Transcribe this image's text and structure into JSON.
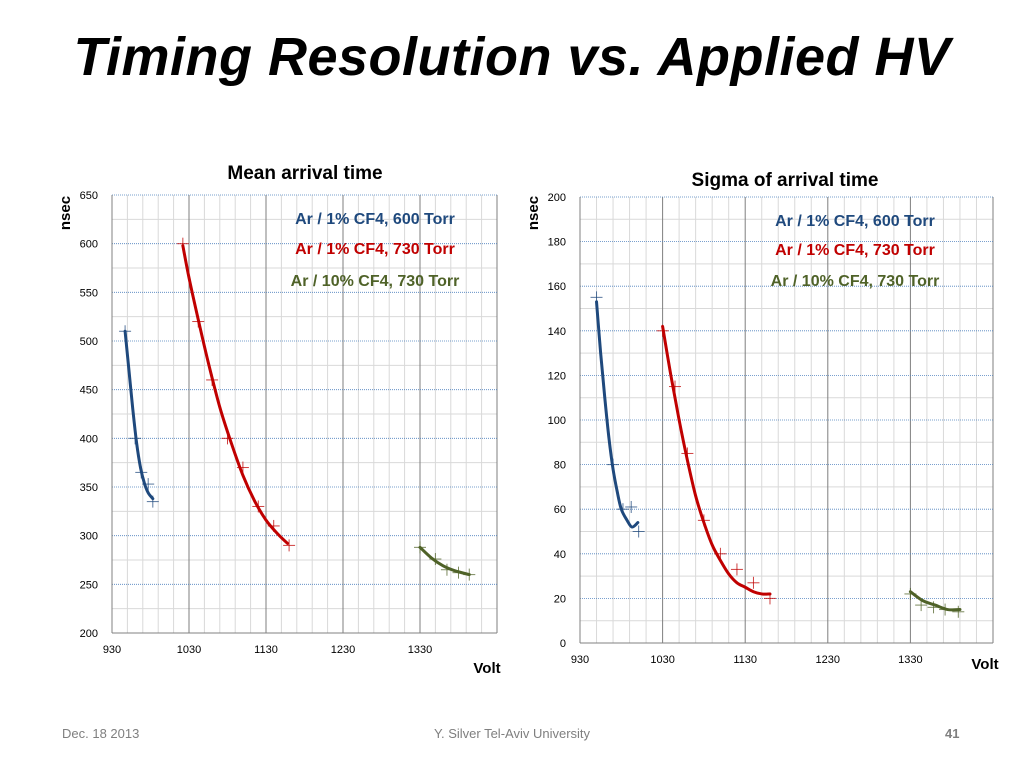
{
  "title": "Timing Resolution vs. Applied HV",
  "footer": {
    "date": "Dec. 18 2013",
    "center": "Y. Silver Tel-Aviv University",
    "page": "41"
  },
  "colors": {
    "series_600": "#1f497d",
    "series_730": "#c00000",
    "series_10pct": "#4f6228"
  },
  "chart_data": [
    {
      "type": "scatter",
      "title": "Mean arrival time",
      "xlabel": "Volt",
      "ylabel": "nsec",
      "xlim": [
        930,
        1430
      ],
      "ylim": [
        200,
        650
      ],
      "x_ticks": [
        930,
        1030,
        1130,
        1230,
        1330
      ],
      "y_ticks": [
        200,
        250,
        300,
        350,
        400,
        450,
        500,
        550,
        600,
        650
      ],
      "grid": true,
      "legend_position": "top-right",
      "series": [
        {
          "name": "Ar / 1% CF4, 600 Torr",
          "color": "#1f497d",
          "markers": [
            [
              947,
              510
            ],
            [
              960,
              400
            ],
            [
              968,
              365
            ],
            [
              977,
              353
            ],
            [
              983,
              335
            ]
          ],
          "fit": [
            [
              947,
              510
            ],
            [
              952,
              470
            ],
            [
              957,
              430
            ],
            [
              962,
              395
            ],
            [
              967,
              370
            ],
            [
              972,
              354
            ],
            [
              977,
              344
            ],
            [
              983,
              338
            ]
          ]
        },
        {
          "name": "Ar / 1% CF4, 730 Torr",
          "color": "#c00000",
          "markers": [
            [
              1022,
              600
            ],
            [
              1042,
              520
            ],
            [
              1060,
              460
            ],
            [
              1080,
              400
            ],
            [
              1100,
              370
            ],
            [
              1120,
              330
            ],
            [
              1140,
              310
            ],
            [
              1160,
              290
            ]
          ],
          "fit": [
            [
              1022,
              598
            ],
            [
              1030,
              565
            ],
            [
              1042,
              522
            ],
            [
              1055,
              478
            ],
            [
              1070,
              432
            ],
            [
              1085,
              395
            ],
            [
              1100,
              362
            ],
            [
              1115,
              336
            ],
            [
              1130,
              316
            ],
            [
              1145,
              302
            ],
            [
              1158,
              292
            ]
          ]
        },
        {
          "name": "Ar / 10% CF4, 730 Torr",
          "color": "#4f6228",
          "markers": [
            [
              1330,
              288
            ],
            [
              1350,
              276
            ],
            [
              1365,
              265
            ],
            [
              1380,
              262
            ],
            [
              1394,
              260
            ]
          ],
          "fit": [
            [
              1330,
              288
            ],
            [
              1345,
              277
            ],
            [
              1360,
              269
            ],
            [
              1375,
              264
            ],
            [
              1394,
              260
            ]
          ]
        }
      ]
    },
    {
      "type": "scatter",
      "title": "Sigma of arrival time",
      "xlabel": "Volt",
      "ylabel": "nsec",
      "xlim": [
        930,
        1430
      ],
      "ylim": [
        0,
        200
      ],
      "x_ticks": [
        930,
        1030,
        1130,
        1230,
        1330
      ],
      "y_ticks": [
        0,
        20,
        40,
        60,
        80,
        100,
        120,
        140,
        160,
        180,
        200
      ],
      "grid": true,
      "legend_position": "top-right",
      "series": [
        {
          "name": "Ar / 1% CF4, 600 Torr",
          "color": "#1f497d",
          "markers": [
            [
              950,
              155
            ],
            [
              970,
              80
            ],
            [
              982,
              60
            ],
            [
              992,
              61
            ],
            [
              1001,
              50
            ]
          ],
          "fit": [
            [
              950,
              153
            ],
            [
              955,
              130
            ],
            [
              960,
              110
            ],
            [
              965,
              92
            ],
            [
              970,
              78
            ],
            [
              975,
              68
            ],
            [
              980,
              60
            ],
            [
              987,
              55
            ],
            [
              993,
              52
            ],
            [
              1000,
              54
            ]
          ]
        },
        {
          "name": "Ar / 1% CF4, 730 Torr",
          "color": "#c00000",
          "markers": [
            [
              1030,
              140
            ],
            [
              1045,
              115
            ],
            [
              1060,
              85
            ],
            [
              1080,
              55
            ],
            [
              1100,
              40
            ],
            [
              1120,
              33
            ],
            [
              1140,
              27
            ],
            [
              1160,
              20
            ]
          ],
          "fit": [
            [
              1030,
              142
            ],
            [
              1040,
              120
            ],
            [
              1050,
              100
            ],
            [
              1060,
              82
            ],
            [
              1070,
              66
            ],
            [
              1080,
              54
            ],
            [
              1090,
              44
            ],
            [
              1100,
              37
            ],
            [
              1110,
              31
            ],
            [
              1120,
              27
            ],
            [
              1130,
              25
            ],
            [
              1140,
              23
            ],
            [
              1150,
              22
            ],
            [
              1160,
              22
            ]
          ]
        },
        {
          "name": "Ar / 10% CF4, 730 Torr",
          "color": "#4f6228",
          "markers": [
            [
              1330,
              22
            ],
            [
              1343,
              17
            ],
            [
              1358,
              16
            ],
            [
              1372,
              15
            ],
            [
              1388,
              14
            ]
          ],
          "fit": [
            [
              1330,
              23
            ],
            [
              1345,
              19
            ],
            [
              1360,
              17
            ],
            [
              1375,
              15
            ],
            [
              1390,
              15
            ]
          ]
        }
      ]
    }
  ]
}
